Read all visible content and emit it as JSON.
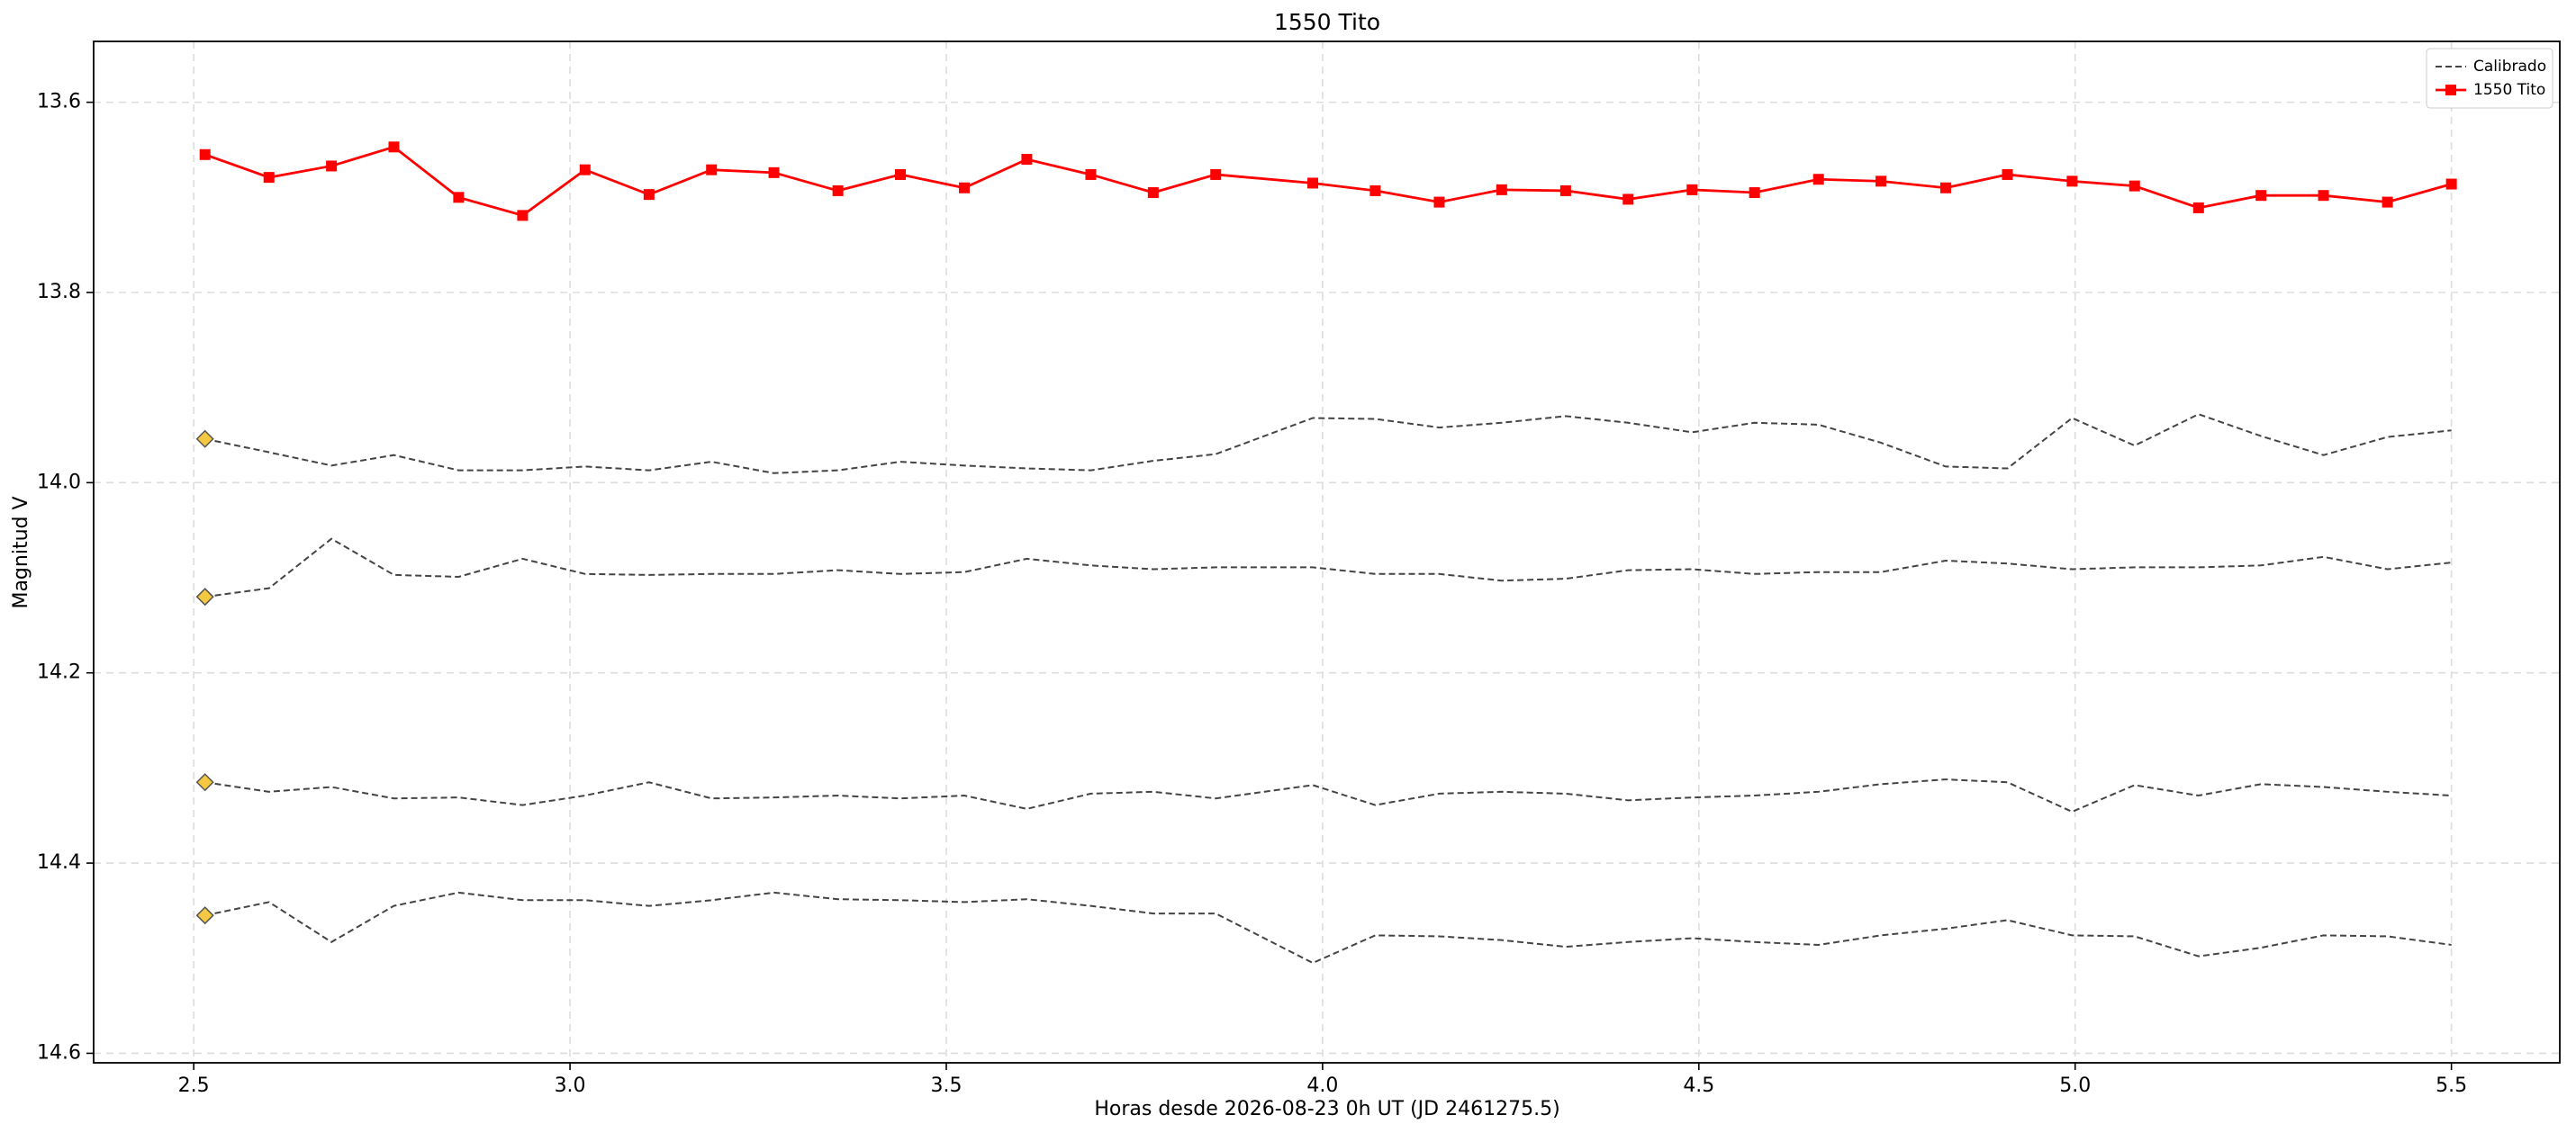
{
  "chart_data": {
    "type": "line",
    "title": "1550 Tito",
    "x_label": "Horas desde 2026-08-23 0h UT (JD 2461275.5)",
    "y_label": "Magnitud V",
    "x": [
      2.515,
      2.6,
      2.683,
      2.766,
      2.852,
      2.937,
      3.02,
      3.105,
      3.188,
      3.271,
      3.356,
      3.439,
      3.524,
      3.607,
      3.692,
      3.775,
      3.858,
      3.987,
      4.07,
      4.155,
      4.238,
      4.323,
      4.406,
      4.491,
      4.574,
      4.659,
      4.742,
      4.828,
      4.91,
      4.996,
      5.079,
      5.164,
      5.247,
      5.33,
      5.415,
      5.5
    ],
    "series": [
      {
        "name": "Calibrado",
        "color": "#444444",
        "dash": true,
        "first_marker_color": "#f5c842",
        "values": [
          13.954,
          13.968,
          13.982,
          13.971,
          13.987,
          13.987,
          13.983,
          13.987,
          13.978,
          13.99,
          13.987,
          13.978,
          13.982,
          13.985,
          13.987,
          13.977,
          13.97,
          13.932,
          13.933,
          13.942,
          13.937,
          13.93,
          13.937,
          13.947,
          13.937,
          13.939,
          13.958,
          13.983,
          13.985,
          13.932,
          13.961,
          13.928,
          13.951,
          13.971,
          13.952,
          13.945
        ]
      },
      {
        "color": "#444444",
        "dash": true,
        "first_marker_color": "#f5c842",
        "values": [
          14.12,
          14.111,
          14.059,
          14.097,
          14.099,
          14.08,
          14.096,
          14.097,
          14.096,
          14.096,
          14.092,
          14.096,
          14.094,
          14.08,
          14.087,
          14.091,
          14.089,
          14.089,
          14.096,
          14.096,
          14.103,
          14.101,
          14.092,
          14.091,
          14.096,
          14.094,
          14.094,
          14.082,
          14.085,
          14.091,
          14.089,
          14.089,
          14.087,
          14.078,
          14.091,
          14.084
        ]
      },
      {
        "color": "#444444",
        "dash": true,
        "first_marker_color": "#f5c842",
        "values": [
          14.315,
          14.325,
          14.32,
          14.332,
          14.331,
          14.339,
          14.329,
          14.315,
          14.332,
          14.331,
          14.329,
          14.332,
          14.329,
          14.343,
          14.327,
          14.325,
          14.332,
          14.318,
          14.339,
          14.327,
          14.325,
          14.327,
          14.334,
          14.331,
          14.329,
          14.325,
          14.317,
          14.312,
          14.315,
          14.346,
          14.318,
          14.329,
          14.317,
          14.32,
          14.325,
          14.329
        ]
      },
      {
        "color": "#444444",
        "dash": true,
        "first_marker_color": "#f5c842",
        "values": [
          14.455,
          14.441,
          14.483,
          14.445,
          14.431,
          14.439,
          14.439,
          14.445,
          14.439,
          14.431,
          14.438,
          14.439,
          14.441,
          14.438,
          14.445,
          14.453,
          14.453,
          14.505,
          14.476,
          14.477,
          14.481,
          14.488,
          14.483,
          14.479,
          14.483,
          14.486,
          14.476,
          14.469,
          14.46,
          14.476,
          14.477,
          14.498,
          14.489,
          14.476,
          14.477,
          14.486
        ]
      },
      {
        "name": "1550 Tito",
        "color": "#ff0000",
        "dash": false,
        "marker": "square",
        "values": [
          13.655,
          13.679,
          13.667,
          13.647,
          13.7,
          13.719,
          13.671,
          13.697,
          13.671,
          13.674,
          13.693,
          13.676,
          13.69,
          13.66,
          13.676,
          13.695,
          13.676,
          13.685,
          13.693,
          13.705,
          13.692,
          13.693,
          13.702,
          13.692,
          13.695,
          13.681,
          13.683,
          13.69,
          13.676,
          13.683,
          13.688,
          13.711,
          13.698,
          13.698,
          13.705,
          13.686
        ]
      }
    ],
    "xlim": [
      2.367,
      5.644
    ],
    "ylim": [
      13.536,
      14.61
    ],
    "y_inverted": true,
    "xticks": [
      2.5,
      {
        "value": 3,
        "label": "3.0"
      },
      3.5,
      {
        "value": 4,
        "label": "4.0"
      },
      4.5,
      {
        "value": 5,
        "label": "5.0"
      },
      5.5
    ],
    "yticks": [
      13.6,
      13.8,
      {
        "value": 14,
        "label": "14.0"
      },
      14.2,
      14.4,
      14.6
    ],
    "grid": true,
    "legend": "upper right"
  }
}
